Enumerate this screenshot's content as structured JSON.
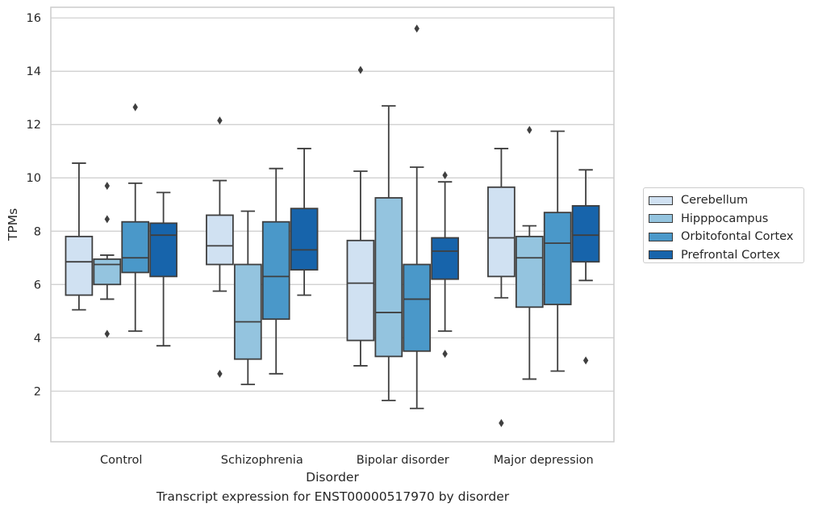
{
  "chart_data": {
    "type": "boxplot",
    "xlabel": "Disorder",
    "ylabel": "TPMs",
    "caption": "Transcript expression for ENST00000517970 by disorder",
    "ylim": [
      0.1,
      16.4
    ],
    "yticks": [
      2,
      4,
      6,
      8,
      10,
      12,
      14,
      16
    ],
    "grid": "horizontal",
    "legend_placement": "right",
    "categories": [
      "Control",
      "Schizophrenia",
      "Bipolar disorder",
      "Major depression"
    ],
    "series": [
      {
        "name": "Cerebellum",
        "color": "#d0e1f2",
        "boxes": [
          {
            "whislo": 5.05,
            "q1": 5.6,
            "med": 6.85,
            "q3": 7.8,
            "whishi": 10.55,
            "fliers": []
          },
          {
            "whislo": 5.75,
            "q1": 6.75,
            "med": 7.45,
            "q3": 8.6,
            "whishi": 9.9,
            "fliers": [
              12.15,
              2.65
            ]
          },
          {
            "whislo": 2.95,
            "q1": 3.9,
            "med": 6.05,
            "q3": 7.65,
            "whishi": 10.25,
            "fliers": [
              14.05
            ]
          },
          {
            "whislo": 5.5,
            "q1": 6.3,
            "med": 7.75,
            "q3": 9.65,
            "whishi": 11.1,
            "fliers": [
              0.8
            ]
          }
        ]
      },
      {
        "name": "Hipppocampus",
        "color": "#94c4df",
        "boxes": [
          {
            "whislo": 5.45,
            "q1": 6.0,
            "med": 6.75,
            "q3": 6.95,
            "whishi": 7.1,
            "fliers": [
              9.7,
              8.45,
              4.15
            ]
          },
          {
            "whislo": 2.25,
            "q1": 3.2,
            "med": 4.6,
            "q3": 6.75,
            "whishi": 8.75,
            "fliers": []
          },
          {
            "whislo": 1.65,
            "q1": 3.3,
            "med": 4.95,
            "q3": 9.25,
            "whishi": 12.7,
            "fliers": []
          },
          {
            "whislo": 2.45,
            "q1": 5.15,
            "med": 7.0,
            "q3": 7.8,
            "whishi": 8.2,
            "fliers": [
              11.8
            ]
          }
        ]
      },
      {
        "name": "Orbitofontal Cortex",
        "color": "#4a98c9",
        "boxes": [
          {
            "whislo": 4.25,
            "q1": 6.45,
            "med": 7.0,
            "q3": 8.35,
            "whishi": 9.8,
            "fliers": [
              12.65
            ]
          },
          {
            "whislo": 2.65,
            "q1": 4.7,
            "med": 6.3,
            "q3": 8.35,
            "whishi": 10.35,
            "fliers": []
          },
          {
            "whislo": 1.35,
            "q1": 3.5,
            "med": 5.45,
            "q3": 6.75,
            "whishi": 10.4,
            "fliers": [
              15.6
            ]
          },
          {
            "whislo": 2.75,
            "q1": 5.25,
            "med": 7.55,
            "q3": 8.7,
            "whishi": 11.75,
            "fliers": []
          }
        ]
      },
      {
        "name": "Prefrontal Cortex",
        "color": "#1764ab",
        "boxes": [
          {
            "whislo": 3.7,
            "q1": 6.3,
            "med": 7.85,
            "q3": 8.3,
            "whishi": 9.45,
            "fliers": []
          },
          {
            "whislo": 5.6,
            "q1": 6.55,
            "med": 7.3,
            "q3": 8.85,
            "whishi": 11.1,
            "fliers": []
          },
          {
            "whislo": 4.25,
            "q1": 6.2,
            "med": 7.25,
            "q3": 7.75,
            "whishi": 9.85,
            "fliers": [
              10.1,
              3.4
            ]
          },
          {
            "whislo": 6.15,
            "q1": 6.85,
            "med": 7.85,
            "q3": 8.95,
            "whishi": 10.3,
            "fliers": [
              3.15
            ]
          }
        ]
      }
    ]
  }
}
